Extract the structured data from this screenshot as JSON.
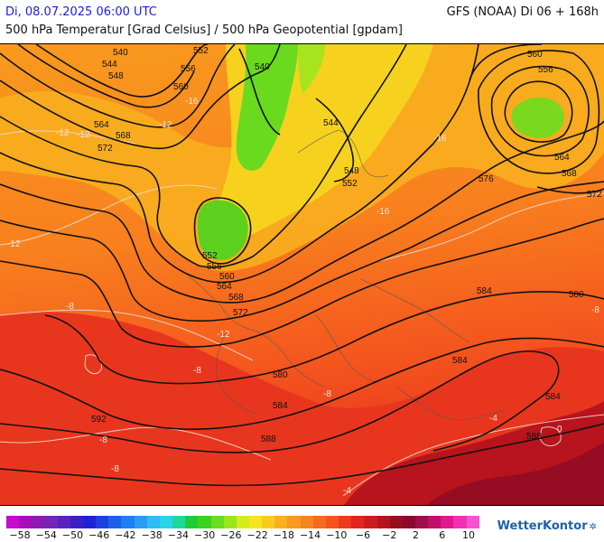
{
  "header": {
    "datetime": "Di, 08.07.2025 06:00 UTC",
    "subtitle": "500 hPa Temperatur [Grad Celsius] / 500 hPa Geopotential [gpdam]",
    "run": "GFS (NOAA) Di 06 + 168h"
  },
  "map": {
    "contour_labels": [
      {
        "name": "label-540-a",
        "text": "540"
      },
      {
        "name": "label-544-a",
        "text": "544"
      },
      {
        "name": "label-548-a",
        "text": "548"
      },
      {
        "name": "label-552-a",
        "text": "552"
      },
      {
        "name": "label-556-a",
        "text": "556"
      },
      {
        "name": "label-560-a",
        "text": "560"
      },
      {
        "name": "label-564-a",
        "text": "564"
      },
      {
        "name": "label-568-a",
        "text": "568"
      },
      {
        "name": "label-572-a",
        "text": "572"
      },
      {
        "name": "label-540-b",
        "text": "540"
      },
      {
        "name": "label-544-b",
        "text": "544"
      },
      {
        "name": "label-548-b",
        "text": "548"
      },
      {
        "name": "label-552-b",
        "text": "552"
      },
      {
        "name": "label-552-c",
        "text": "552"
      },
      {
        "name": "label-556-b",
        "text": "556"
      },
      {
        "name": "label-560-b",
        "text": "560"
      },
      {
        "name": "label-564-b",
        "text": "564"
      },
      {
        "name": "label-568-b",
        "text": "568"
      },
      {
        "name": "label-572-b",
        "text": "572"
      },
      {
        "name": "label-560-c",
        "text": "560"
      },
      {
        "name": "label-556-c",
        "text": "556"
      },
      {
        "name": "label-564-c",
        "text": "564"
      },
      {
        "name": "label-568-c",
        "text": "568"
      },
      {
        "name": "label-572-c",
        "text": "572"
      },
      {
        "name": "label-576",
        "text": "576"
      },
      {
        "name": "label-580-a",
        "text": "580"
      },
      {
        "name": "label-580-b",
        "text": "580"
      },
      {
        "name": "label-584-a",
        "text": "584"
      },
      {
        "name": "label-584-b",
        "text": "584"
      },
      {
        "name": "label-584-c",
        "text": "584"
      },
      {
        "name": "label-584-d",
        "text": "584"
      },
      {
        "name": "label-588-a",
        "text": "588"
      },
      {
        "name": "label-588-b",
        "text": "588"
      },
      {
        "name": "label-592",
        "text": "592"
      }
    ],
    "temp_labels": [
      {
        "name": "temp-minus12-a",
        "text": "-12"
      },
      {
        "name": "temp-minus12-b",
        "text": "-12"
      },
      {
        "name": "temp-minus12-c",
        "text": "-12"
      },
      {
        "name": "temp-minus12-d",
        "text": "-12"
      },
      {
        "name": "temp-minus12-e",
        "text": "-12"
      },
      {
        "name": "temp-minus16-a",
        "text": "-16"
      },
      {
        "name": "temp-minus16-b",
        "text": "-16"
      },
      {
        "name": "temp-minus16-c",
        "text": "-16"
      },
      {
        "name": "temp-minus8-a",
        "text": "-8"
      },
      {
        "name": "temp-minus8-b",
        "text": "-8"
      },
      {
        "name": "temp-minus8-c",
        "text": "-8"
      },
      {
        "name": "temp-minus8-d",
        "text": "-8"
      },
      {
        "name": "temp-minus8-e",
        "text": "-8"
      },
      {
        "name": "temp-minus8-f",
        "text": "-8"
      },
      {
        "name": "temp-minus4-a",
        "text": "-4"
      },
      {
        "name": "temp-minus4-b",
        "text": "-4"
      },
      {
        "name": "temp-0",
        "text": "0"
      }
    ]
  },
  "legend": {
    "colors": [
      "#c30ccf",
      "#a80cbf",
      "#8c1cb0",
      "#7226b8",
      "#5a22c2",
      "#3c1ec8",
      "#1e24d6",
      "#1e3ee0",
      "#1e5eec",
      "#1e7ef4",
      "#2a9cf6",
      "#2ebcf4",
      "#28d4e6",
      "#1ed89a",
      "#1ecc3a",
      "#3cd21e",
      "#6ade1e",
      "#9ae61e",
      "#d2ec1e",
      "#f6e41e",
      "#f8cc1e",
      "#f8b01e",
      "#f89a1e",
      "#f8841e",
      "#f86a1e",
      "#f8521e",
      "#f03a1e",
      "#e0261e",
      "#cc1c1e",
      "#b4141e",
      "#9a0c20",
      "#8a0a2e",
      "#a00e4a",
      "#c0106a",
      "#e0188c",
      "#f030b0",
      "#f852d0"
    ],
    "ticks": [
      "−58",
      "−54",
      "−50",
      "−46",
      "−42",
      "−38",
      "−34",
      "−30",
      "−26",
      "−22",
      "−18",
      "−14",
      "−10",
      "−6",
      "−2",
      "2",
      "6",
      "10"
    ]
  },
  "brand": {
    "name": "WetterKontor"
  }
}
